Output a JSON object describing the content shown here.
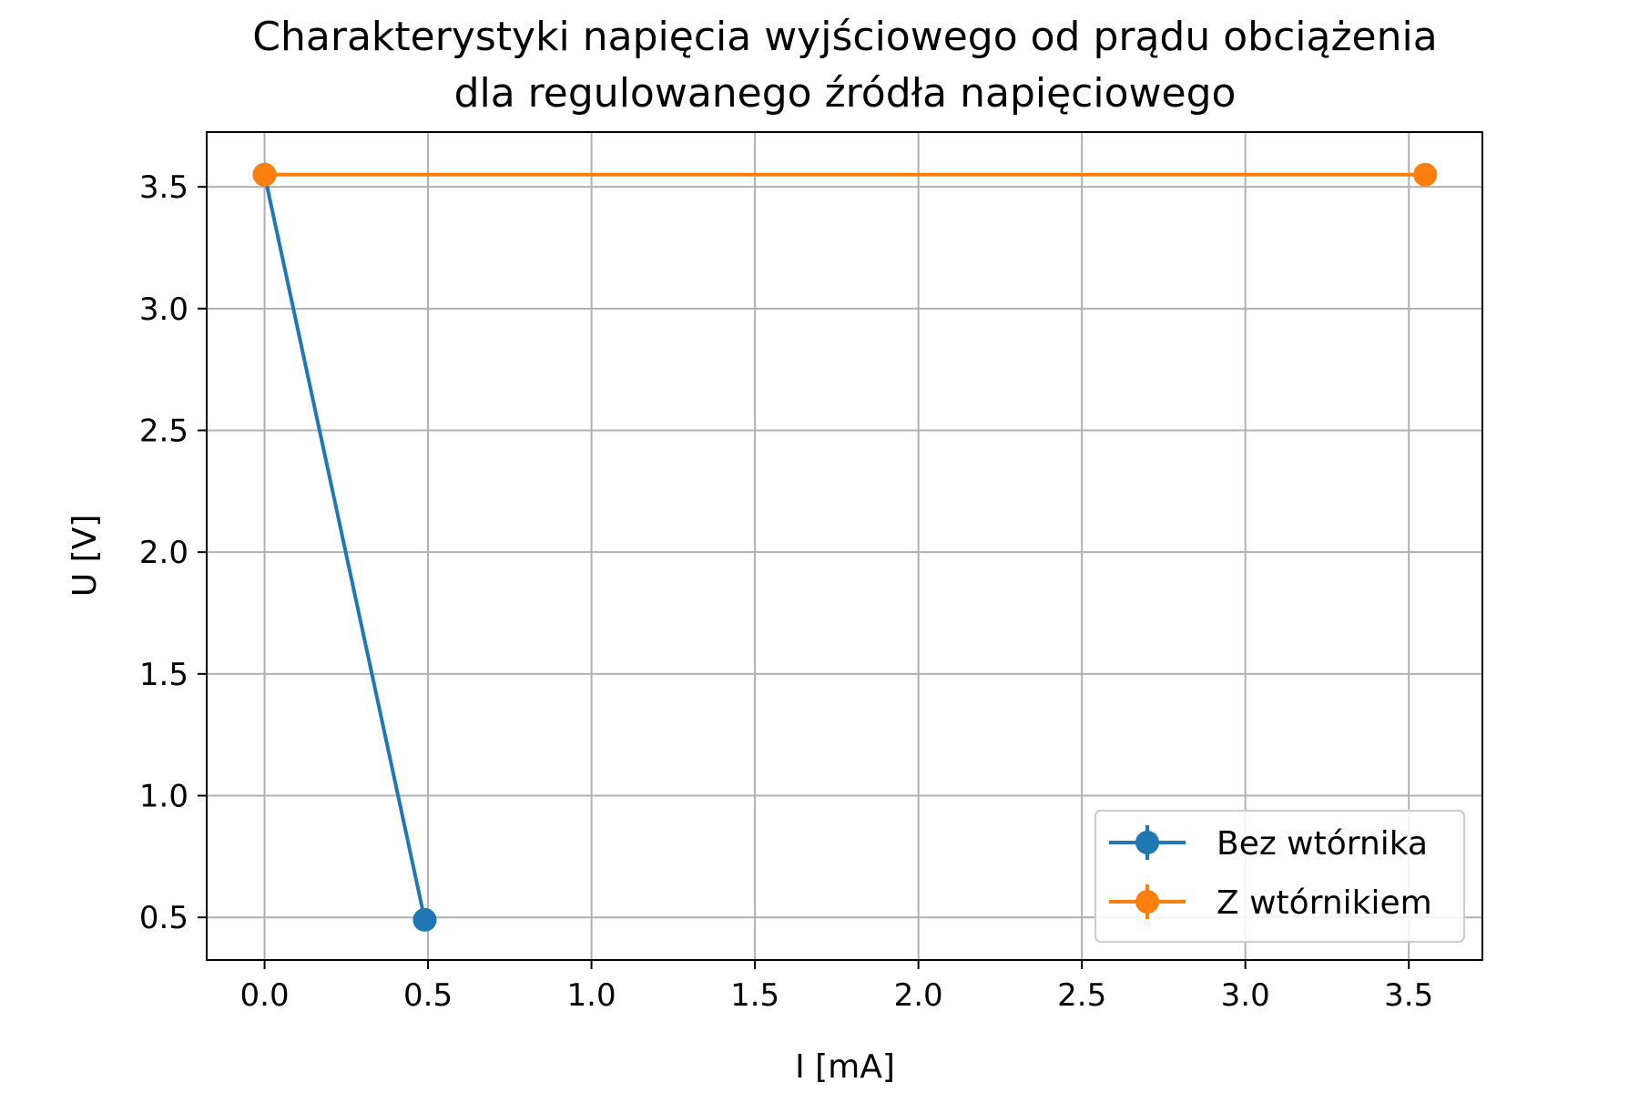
{
  "chart_data": {
    "type": "line",
    "title_lines": [
      "Charakterystyki napięcia wyjściowego od prądu obciążenia",
      "dla regulowanego źródła napięciowego"
    ],
    "xlabel": "I [mA]",
    "ylabel": "U [V]",
    "xlim": [
      -0.177,
      3.725
    ],
    "ylim": [
      0.325,
      3.725
    ],
    "x_ticks": [
      0.0,
      0.5,
      1.0,
      1.5,
      2.0,
      2.5,
      3.0,
      3.5
    ],
    "x_tick_labels": [
      "0.0",
      "0.5",
      "1.0",
      "1.5",
      "2.0",
      "2.5",
      "3.0",
      "3.5"
    ],
    "y_ticks": [
      0.5,
      1.0,
      1.5,
      2.0,
      2.5,
      3.0,
      3.5
    ],
    "y_tick_labels": [
      "0.5",
      "1.0",
      "1.5",
      "2.0",
      "2.5",
      "3.0",
      "3.5"
    ],
    "grid": true,
    "legend_position": "lower-right",
    "series": [
      {
        "name": "Bez wtórnika",
        "color": "#1f77b4",
        "marker": "circle",
        "x": [
          0.0,
          0.49
        ],
        "y": [
          3.55,
          0.49
        ]
      },
      {
        "name": "Z wtórnikiem",
        "color": "#ff7f0e",
        "marker": "circle",
        "x": [
          0.0,
          3.55
        ],
        "y": [
          3.55,
          3.55
        ]
      }
    ]
  }
}
